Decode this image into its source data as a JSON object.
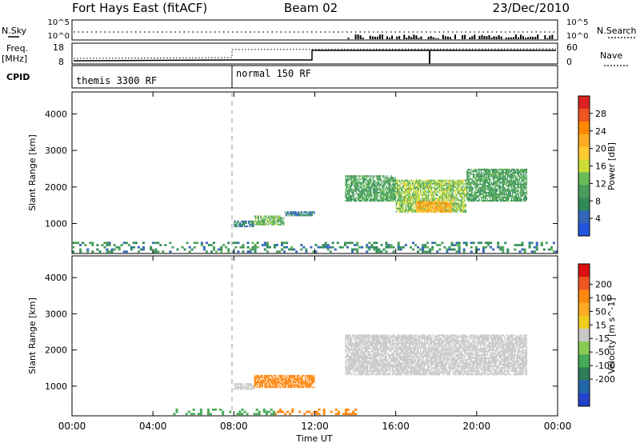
{
  "header": {
    "station": "Fort Hays East (fitACF)",
    "beam": "Beam 02",
    "date": "23/Dec/2010"
  },
  "side_labels": {
    "nsky": "N.Sky",
    "nsearch": "N.Search",
    "freq": "Freq.",
    "freq_unit": "[MHz]",
    "nave": "Nave",
    "cpid": "CPID"
  },
  "noise_panel": {
    "ticks_left": [
      "10^5",
      "10^0"
    ],
    "ticks_right": [
      "10^5",
      "10^0"
    ]
  },
  "freq_panel": {
    "ticks_left": [
      "18",
      "8"
    ],
    "ticks_right": [
      "60",
      "0"
    ]
  },
  "cpid_panel": {
    "modes": [
      {
        "label": "themis 3300 RF",
        "start_hour": 0
      },
      {
        "label": "normal 150 RF",
        "start_hour": 8
      }
    ]
  },
  "axes": {
    "xlabel": "Time UT",
    "xticks": [
      "00:00",
      "04:00",
      "08:00",
      "12:00",
      "16:00",
      "20:00",
      "00:00"
    ],
    "xtick_hours": [
      0,
      4,
      8,
      12,
      16,
      20,
      24
    ],
    "ylabel": "Slant Range [km]",
    "yticks": [
      "1000",
      "2000",
      "3000",
      "4000"
    ],
    "ytick_values": [
      1000,
      2000,
      3000,
      4000
    ],
    "ylim": [
      180,
      4600
    ],
    "xlim": [
      0,
      24
    ]
  },
  "chart_data": [
    {
      "type": "heatmap",
      "name": "power",
      "colorbar_label": "Power [dB]",
      "colorbar_ticks": [
        "4",
        "8",
        "12",
        "16",
        "20",
        "24",
        "28"
      ],
      "colorbar_tick_values": [
        4,
        8,
        12,
        16,
        20,
        24,
        28
      ],
      "colorbar_range": [
        0,
        32
      ],
      "colors": [
        "#2255dd",
        "#3366bb",
        "#2e8b57",
        "#4a9e5a",
        "#66bb55",
        "#ccdd33",
        "#ffcc33",
        "#ffaa22",
        "#ff8800",
        "#ee5522",
        "#dd2222"
      ],
      "regions": [
        {
          "t_start": 8.0,
          "t_end": 9.0,
          "r_low": 900,
          "r_high": 1050,
          "value": 6
        },
        {
          "t_start": 9.0,
          "t_end": 10.5,
          "r_low": 950,
          "r_high": 1200,
          "value": 12
        },
        {
          "t_start": 10.5,
          "t_end": 12.0,
          "r_low": 1200,
          "r_high": 1300,
          "value": 6
        },
        {
          "t_start": 13.5,
          "t_end": 16.0,
          "r_low": 1600,
          "r_high": 2300,
          "value": 10
        },
        {
          "t_start": 16.0,
          "t_end": 19.5,
          "r_low": 1300,
          "r_high": 2200,
          "value": 14
        },
        {
          "t_start": 17.0,
          "t_end": 18.8,
          "r_low": 1300,
          "r_high": 1600,
          "value": 22
        },
        {
          "t_start": 19.5,
          "t_end": 22.5,
          "r_low": 1600,
          "r_high": 2500,
          "value": 10
        },
        {
          "t_start": 0.0,
          "t_end": 24.0,
          "r_low": 200,
          "r_high": 450,
          "value": 8
        }
      ]
    },
    {
      "type": "heatmap",
      "name": "velocity",
      "colorbar_label": "Velocity [m s^-1]",
      "colorbar_ticks": [
        "200",
        "100",
        "50",
        "15",
        "-15",
        "-50",
        "-100",
        "-200"
      ],
      "colorbar_tick_values": [
        200,
        100,
        50,
        15,
        -15,
        -50,
        -100,
        -200
      ],
      "colors": [
        "#dd1111",
        "#ee5522",
        "#ff8811",
        "#ffaa22",
        "#eecc22",
        "#c8c8c8",
        "#88cc55",
        "#44aa55",
        "#2e7d5a",
        "#2266aa",
        "#2244cc"
      ],
      "regions": [
        {
          "t_start": 8.0,
          "t_end": 9.0,
          "r_low": 900,
          "r_high": 1050,
          "value": 0
        },
        {
          "t_start": 9.0,
          "t_end": 12.0,
          "r_low": 950,
          "r_high": 1300,
          "value": -60
        },
        {
          "t_start": 13.5,
          "t_end": 22.5,
          "r_low": 1300,
          "r_high": 2400,
          "value": 0
        },
        {
          "t_start": 10.0,
          "t_end": 14.0,
          "r_low": 200,
          "r_high": 350,
          "value": -60
        },
        {
          "t_start": 5.0,
          "t_end": 10.0,
          "r_low": 200,
          "r_high": 350,
          "value": 40
        }
      ]
    }
  ]
}
